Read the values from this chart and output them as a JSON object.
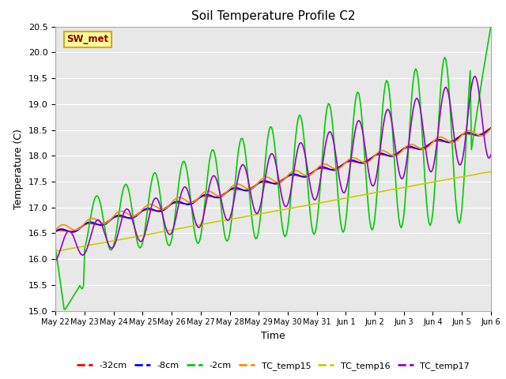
{
  "title": "Soil Temperature Profile C2",
  "xlabel": "Time",
  "ylabel": "Temperature (C)",
  "ylim": [
    15.0,
    20.5
  ],
  "yticks": [
    15.0,
    15.5,
    16.0,
    16.5,
    17.0,
    17.5,
    18.0,
    18.5,
    19.0,
    19.5,
    20.0,
    20.5
  ],
  "xtick_labels": [
    "May 22",
    "May 23",
    "May 24",
    "May 25",
    "May 26",
    "May 27",
    "May 28",
    "May 29",
    "May 30",
    "May 31",
    "Jun 1",
    "Jun 2",
    "Jun 3",
    "Jun 4",
    "Jun 5",
    "Jun 6"
  ],
  "annotation_text": "SW_met",
  "annotation_color": "#8B0000",
  "annotation_bg": "#FFFF99",
  "annotation_border": "#DAA520",
  "series_colors": {
    "neg32cm": "#FF0000",
    "neg8cm": "#0000FF",
    "neg2cm": "#00CC00",
    "tc15": "#FF8C00",
    "tc16": "#CCCC00",
    "tc17": "#9900CC"
  },
  "series_labels": [
    "-32cm",
    "-8cm",
    "-2cm",
    "TC_temp15",
    "TC_temp16",
    "TC_temp17"
  ]
}
